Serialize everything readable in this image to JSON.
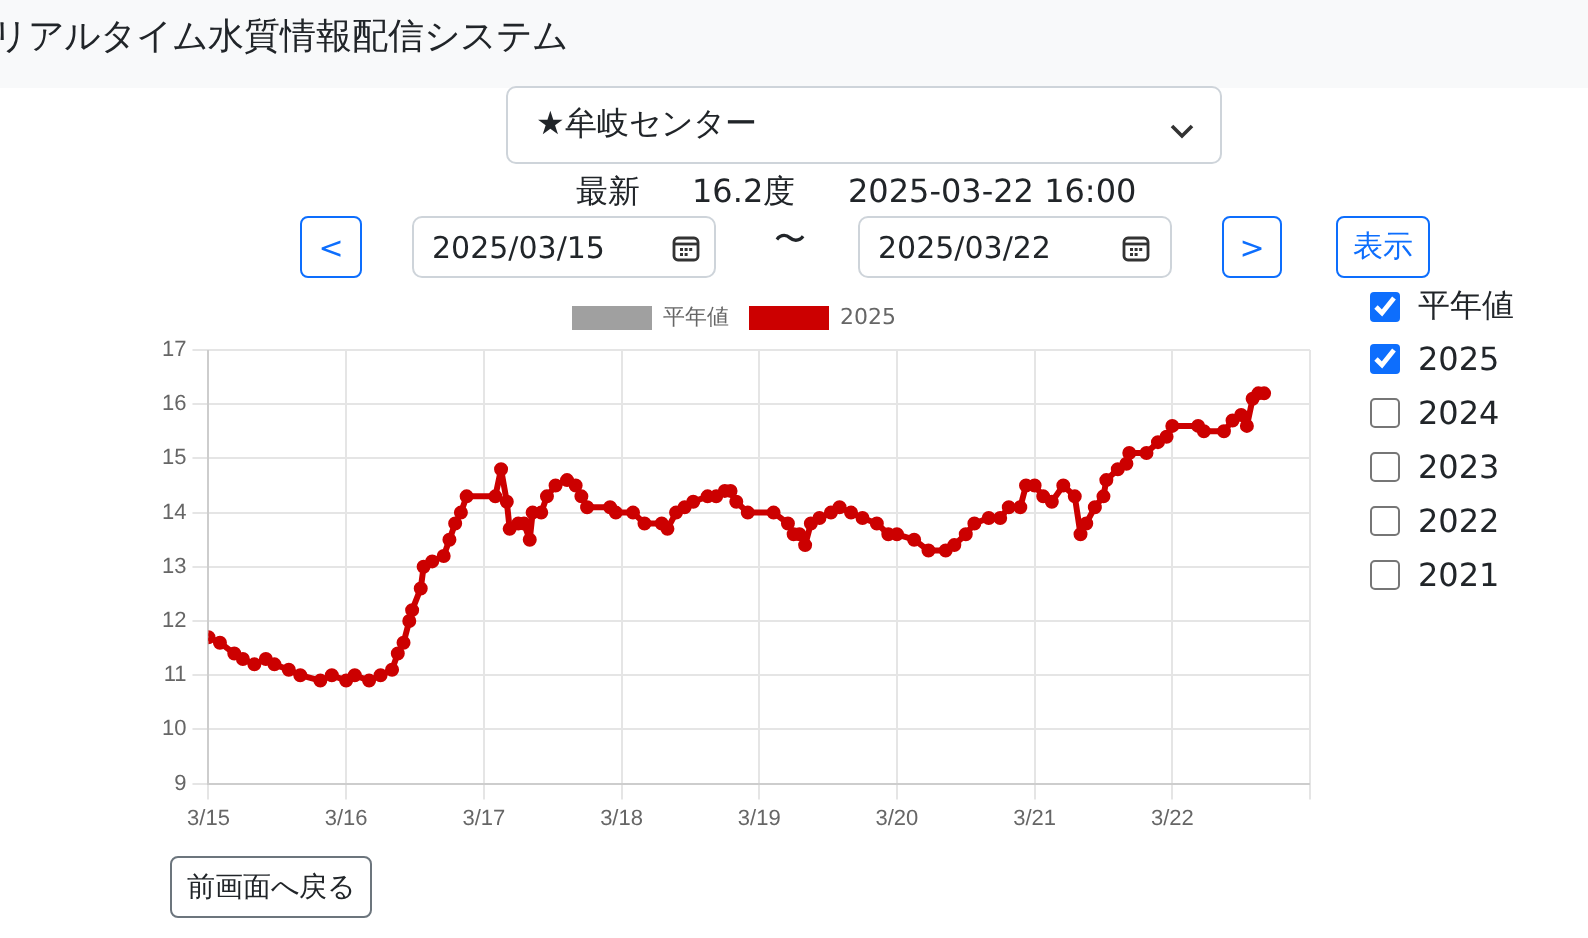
{
  "chart_data": {
    "type": "line",
    "x": [
      "2025-03-15T00:00",
      "2025-03-15T02:00",
      "2025-03-15T04:30",
      "2025-03-15T06:00",
      "2025-03-15T08:00",
      "2025-03-15T10:00",
      "2025-03-15T11:30",
      "2025-03-15T14:00",
      "2025-03-15T16:00",
      "2025-03-15T19:30",
      "2025-03-15T21:30",
      "2025-03-16T00:00",
      "2025-03-16T01:30",
      "2025-03-16T04:00",
      "2025-03-16T06:00",
      "2025-03-16T08:00",
      "2025-03-16T09:00",
      "2025-03-16T10:00",
      "2025-03-16T11:00",
      "2025-03-16T11:30",
      "2025-03-16T13:00",
      "2025-03-16T13:30",
      "2025-03-16T15:00",
      "2025-03-16T17:00",
      "2025-03-16T18:00",
      "2025-03-16T19:00",
      "2025-03-16T20:00",
      "2025-03-16T21:00",
      "2025-03-17T02:00",
      "2025-03-17T03:00",
      "2025-03-17T04:00",
      "2025-03-17T04:30",
      "2025-03-17T06:00",
      "2025-03-17T07:00",
      "2025-03-17T08:00",
      "2025-03-17T08:30",
      "2025-03-17T10:00",
      "2025-03-17T11:00",
      "2025-03-17T12:30",
      "2025-03-17T14:30",
      "2025-03-17T16:00",
      "2025-03-17T17:00",
      "2025-03-17T18:00",
      "2025-03-17T22:00",
      "2025-03-17T23:00",
      "2025-03-18T02:00",
      "2025-03-18T04:00",
      "2025-03-18T07:00",
      "2025-03-18T08:00",
      "2025-03-18T09:30",
      "2025-03-18T11:00",
      "2025-03-18T12:30",
      "2025-03-18T15:00",
      "2025-03-18T16:30",
      "2025-03-18T18:00",
      "2025-03-18T19:00",
      "2025-03-18T20:00",
      "2025-03-18T22:00",
      "2025-03-19T02:30",
      "2025-03-19T05:00",
      "2025-03-19T06:00",
      "2025-03-19T07:00",
      "2025-03-19T08:00",
      "2025-03-19T09:00",
      "2025-03-19T10:30",
      "2025-03-19T12:30",
      "2025-03-19T14:00",
      "2025-03-19T16:00",
      "2025-03-19T18:00",
      "2025-03-19T20:30",
      "2025-03-19T22:30",
      "2025-03-20T00:00",
      "2025-03-20T03:00",
      "2025-03-20T05:30",
      "2025-03-20T08:30",
      "2025-03-20T10:00",
      "2025-03-20T12:00",
      "2025-03-20T13:30",
      "2025-03-20T16:00",
      "2025-03-20T18:00",
      "2025-03-20T19:30",
      "2025-03-20T21:30",
      "2025-03-20T22:30",
      "2025-03-21T00:00",
      "2025-03-21T01:30",
      "2025-03-21T03:00",
      "2025-03-21T05:00",
      "2025-03-21T07:00",
      "2025-03-21T08:00",
      "2025-03-21T09:00",
      "2025-03-21T10:30",
      "2025-03-21T12:00",
      "2025-03-21T12:30",
      "2025-03-21T14:30",
      "2025-03-21T16:00",
      "2025-03-21T16:30",
      "2025-03-21T19:30",
      "2025-03-21T21:30",
      "2025-03-21T23:00",
      "2025-03-22T00:00",
      "2025-03-22T04:30",
      "2025-03-22T05:30",
      "2025-03-22T09:00",
      "2025-03-22T10:30",
      "2025-03-22T12:00",
      "2025-03-22T13:00",
      "2025-03-22T14:00",
      "2025-03-22T15:00",
      "2025-03-22T16:00"
    ],
    "series": [
      {
        "name": "平年値",
        "color": "#a0a0a0",
        "values": [
          null,
          null,
          null,
          null,
          null,
          null,
          null,
          null,
          null,
          null,
          null,
          null,
          null,
          null,
          null,
          null,
          null,
          null,
          null,
          null,
          null,
          null,
          null,
          null,
          null,
          null,
          null,
          null,
          null,
          null,
          null,
          null,
          null,
          null,
          null,
          null,
          null,
          null,
          null,
          null,
          null,
          null,
          null,
          null,
          null,
          null,
          null,
          null,
          null,
          null,
          null,
          null,
          null,
          null,
          null,
          null,
          null,
          null,
          null,
          null,
          null,
          null,
          null,
          null,
          null,
          null,
          null,
          null,
          null,
          null,
          null,
          null,
          null,
          null,
          null,
          null,
          null,
          null,
          null,
          null,
          null,
          null,
          null,
          null,
          null,
          null,
          null,
          null,
          null,
          null,
          null,
          null,
          null,
          null,
          null,
          null,
          null,
          null,
          null,
          null,
          null,
          null,
          null,
          null,
          null,
          null,
          null,
          null,
          null
        ]
      },
      {
        "name": "2025",
        "color": "#cc0000",
        "values": [
          11.7,
          11.6,
          11.4,
          11.3,
          11.2,
          11.3,
          11.2,
          11.1,
          11.0,
          10.9,
          11.0,
          10.9,
          11.0,
          10.9,
          11.0,
          11.1,
          11.4,
          11.6,
          12.0,
          12.2,
          12.6,
          13.0,
          13.1,
          13.2,
          13.5,
          13.8,
          14.0,
          14.3,
          14.3,
          14.8,
          14.2,
          13.7,
          13.8,
          13.8,
          13.5,
          14.0,
          14.0,
          14.3,
          14.5,
          14.6,
          14.5,
          14.3,
          14.1,
          14.1,
          14.0,
          14.0,
          13.8,
          13.8,
          13.7,
          14.0,
          14.1,
          14.2,
          14.3,
          14.3,
          14.4,
          14.4,
          14.2,
          14.0,
          14.0,
          13.8,
          13.6,
          13.6,
          13.4,
          13.8,
          13.9,
          14.0,
          14.1,
          14.0,
          13.9,
          13.8,
          13.6,
          13.6,
          13.5,
          13.3,
          13.3,
          13.4,
          13.6,
          13.8,
          13.9,
          13.9,
          14.1,
          14.1,
          14.5,
          14.5,
          14.3,
          14.2,
          14.5,
          14.3,
          13.6,
          13.8,
          14.1,
          14.3,
          14.6,
          14.8,
          14.9,
          15.1,
          15.1,
          15.3,
          15.4,
          15.6,
          15.6,
          15.5,
          15.5,
          15.7,
          15.8,
          15.6,
          16.1,
          16.2,
          16.2
        ]
      }
    ],
    "xlim": [
      "2025-03-15",
      "2025-03-23"
    ],
    "xticks": [
      {
        "value": "2025-03-15",
        "label": "3/15"
      },
      {
        "value": "2025-03-16",
        "label": "3/16"
      },
      {
        "value": "2025-03-17",
        "label": "3/17"
      },
      {
        "value": "2025-03-18",
        "label": "3/18"
      },
      {
        "value": "2025-03-19",
        "label": "3/19"
      },
      {
        "value": "2025-03-20",
        "label": "3/20"
      },
      {
        "value": "2025-03-21",
        "label": "3/21"
      },
      {
        "value": "2025-03-22",
        "label": "3/22"
      },
      {
        "value": "2025-03-23",
        "label": null
      }
    ],
    "ylim": [
      9,
      17
    ],
    "yticks": [
      9,
      10,
      11,
      12,
      13,
      14,
      15,
      16,
      17
    ],
    "grid": true,
    "legend": "top",
    "marker": "circle",
    "line_style": "solid",
    "annotations": [
      "リアルタイム水質情報配信システム",
      "★牟岐センター",
      "最新",
      "16.2度",
      "2025-03-22 16:00",
      "<",
      "2025/03/15",
      "〜",
      "2025/03/22",
      ">",
      "表示",
      "2024",
      "2023",
      "2022",
      "2021",
      "前画面へ戻る"
    ]
  }
}
